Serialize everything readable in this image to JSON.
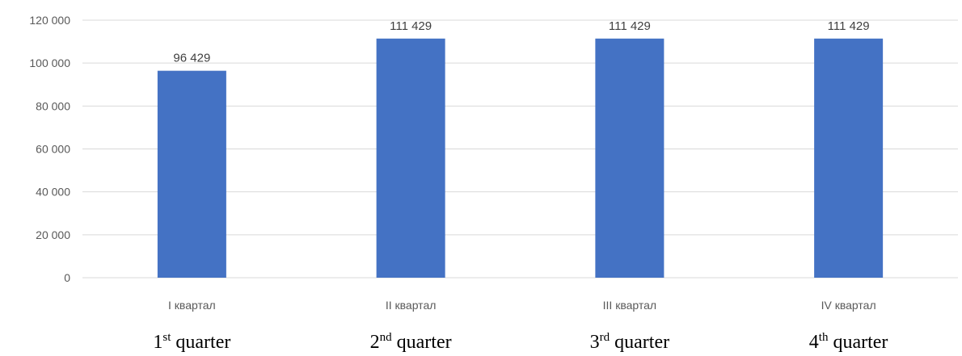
{
  "chart_data": {
    "type": "bar",
    "categories": [
      "I квартал",
      "II квартал",
      "III квартал",
      "IV квартал"
    ],
    "values": [
      96429,
      111429,
      111429,
      111429
    ],
    "data_labels": [
      "96 429",
      "111 429",
      "111 429",
      "111 429"
    ],
    "ylim": [
      0,
      120000
    ],
    "yticks": [
      0,
      20000,
      40000,
      60000,
      80000,
      100000,
      120000
    ],
    "ytick_labels": [
      "0",
      "20 000",
      "40 000",
      "60 000",
      "80 000",
      "100 000",
      "120 000"
    ],
    "grid": true,
    "bar_color": "#4472C4",
    "grid_color": "#D9D9D9"
  },
  "translations": [
    {
      "num": "1",
      "sup": "st",
      "word": " quarter"
    },
    {
      "num": "2",
      "sup": "nd",
      "word": " quarter"
    },
    {
      "num": "3",
      "sup": "rd",
      "word": " quarter"
    },
    {
      "num": "4",
      "sup": "th",
      "word": " quarter"
    }
  ]
}
